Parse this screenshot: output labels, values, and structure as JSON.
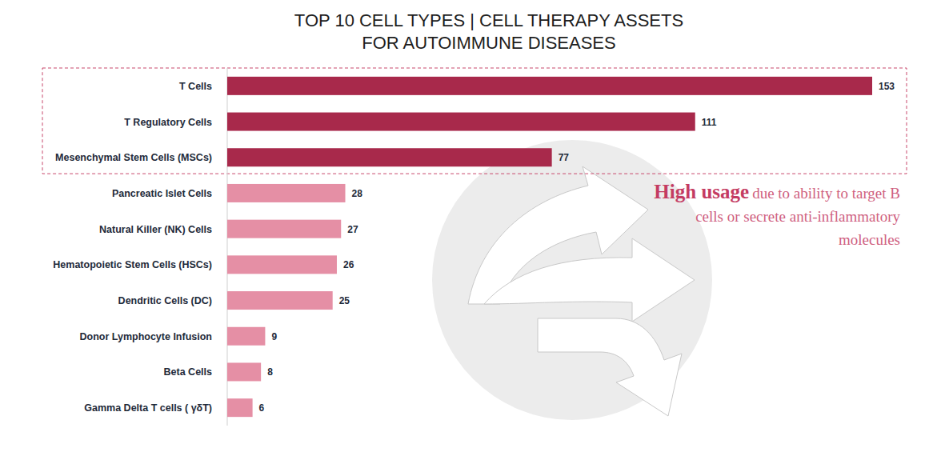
{
  "chart_data": {
    "type": "bar",
    "orientation": "horizontal",
    "title": "TOP 10 CELL TYPES | CELL THERAPY ASSETS FOR AUTOIMMUNE DISEASES",
    "categories": [
      "T Cells",
      "T Regulatory Cells",
      "Mesenchymal Stem Cells (MSCs)",
      "Pancreatic Islet Cells",
      "Natural Killer (NK) Cells",
      "Hematopoietic Stem Cells (HSCs)",
      "Dendritic Cells (DC)",
      "Donor Lymphocyte Infusion",
      "Beta Cells",
      "Gamma Delta T cells ( γδT)"
    ],
    "values": [
      153,
      111,
      77,
      28,
      27,
      26,
      25,
      9,
      8,
      6
    ],
    "colors": [
      "#a8294b",
      "#a8294b",
      "#a8294b",
      "#e58fa5",
      "#e58fa5",
      "#e58fa5",
      "#e58fa5",
      "#e58fa5",
      "#e58fa5",
      "#e58fa5"
    ],
    "xlim": [
      0,
      153
    ],
    "data_labels": true,
    "tick_labels": false,
    "annotation": {
      "emphasis": "High usage",
      "text": "due to ability to target B cells or secrete anti-inflammatory molecules"
    }
  }
}
